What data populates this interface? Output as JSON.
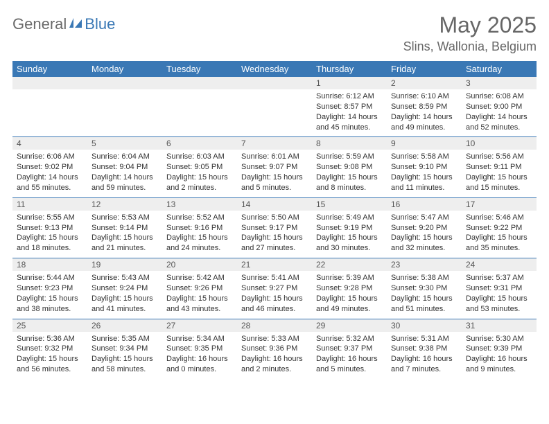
{
  "logo": {
    "text1": "General",
    "text2": "Blue"
  },
  "header": {
    "month": "May 2025",
    "location": "Slins, Wallonia, Belgium"
  },
  "dayNames": [
    "Sunday",
    "Monday",
    "Tuesday",
    "Wednesday",
    "Thursday",
    "Friday",
    "Saturday"
  ],
  "colors": {
    "header_bg": "#3a78b5",
    "header_fg": "#ffffff",
    "num_bg": "#eeeeee",
    "text": "#333333",
    "logo_gray": "#6a6a6a",
    "logo_blue": "#3a78b5"
  },
  "weeks": [
    [
      null,
      null,
      null,
      null,
      {
        "n": "1",
        "sr": "Sunrise: 6:12 AM",
        "ss": "Sunset: 8:57 PM",
        "d1": "Daylight: 14 hours",
        "d2": "and 45 minutes."
      },
      {
        "n": "2",
        "sr": "Sunrise: 6:10 AM",
        "ss": "Sunset: 8:59 PM",
        "d1": "Daylight: 14 hours",
        "d2": "and 49 minutes."
      },
      {
        "n": "3",
        "sr": "Sunrise: 6:08 AM",
        "ss": "Sunset: 9:00 PM",
        "d1": "Daylight: 14 hours",
        "d2": "and 52 minutes."
      }
    ],
    [
      {
        "n": "4",
        "sr": "Sunrise: 6:06 AM",
        "ss": "Sunset: 9:02 PM",
        "d1": "Daylight: 14 hours",
        "d2": "and 55 minutes."
      },
      {
        "n": "5",
        "sr": "Sunrise: 6:04 AM",
        "ss": "Sunset: 9:04 PM",
        "d1": "Daylight: 14 hours",
        "d2": "and 59 minutes."
      },
      {
        "n": "6",
        "sr": "Sunrise: 6:03 AM",
        "ss": "Sunset: 9:05 PM",
        "d1": "Daylight: 15 hours",
        "d2": "and 2 minutes."
      },
      {
        "n": "7",
        "sr": "Sunrise: 6:01 AM",
        "ss": "Sunset: 9:07 PM",
        "d1": "Daylight: 15 hours",
        "d2": "and 5 minutes."
      },
      {
        "n": "8",
        "sr": "Sunrise: 5:59 AM",
        "ss": "Sunset: 9:08 PM",
        "d1": "Daylight: 15 hours",
        "d2": "and 8 minutes."
      },
      {
        "n": "9",
        "sr": "Sunrise: 5:58 AM",
        "ss": "Sunset: 9:10 PM",
        "d1": "Daylight: 15 hours",
        "d2": "and 11 minutes."
      },
      {
        "n": "10",
        "sr": "Sunrise: 5:56 AM",
        "ss": "Sunset: 9:11 PM",
        "d1": "Daylight: 15 hours",
        "d2": "and 15 minutes."
      }
    ],
    [
      {
        "n": "11",
        "sr": "Sunrise: 5:55 AM",
        "ss": "Sunset: 9:13 PM",
        "d1": "Daylight: 15 hours",
        "d2": "and 18 minutes."
      },
      {
        "n": "12",
        "sr": "Sunrise: 5:53 AM",
        "ss": "Sunset: 9:14 PM",
        "d1": "Daylight: 15 hours",
        "d2": "and 21 minutes."
      },
      {
        "n": "13",
        "sr": "Sunrise: 5:52 AM",
        "ss": "Sunset: 9:16 PM",
        "d1": "Daylight: 15 hours",
        "d2": "and 24 minutes."
      },
      {
        "n": "14",
        "sr": "Sunrise: 5:50 AM",
        "ss": "Sunset: 9:17 PM",
        "d1": "Daylight: 15 hours",
        "d2": "and 27 minutes."
      },
      {
        "n": "15",
        "sr": "Sunrise: 5:49 AM",
        "ss": "Sunset: 9:19 PM",
        "d1": "Daylight: 15 hours",
        "d2": "and 30 minutes."
      },
      {
        "n": "16",
        "sr": "Sunrise: 5:47 AM",
        "ss": "Sunset: 9:20 PM",
        "d1": "Daylight: 15 hours",
        "d2": "and 32 minutes."
      },
      {
        "n": "17",
        "sr": "Sunrise: 5:46 AM",
        "ss": "Sunset: 9:22 PM",
        "d1": "Daylight: 15 hours",
        "d2": "and 35 minutes."
      }
    ],
    [
      {
        "n": "18",
        "sr": "Sunrise: 5:44 AM",
        "ss": "Sunset: 9:23 PM",
        "d1": "Daylight: 15 hours",
        "d2": "and 38 minutes."
      },
      {
        "n": "19",
        "sr": "Sunrise: 5:43 AM",
        "ss": "Sunset: 9:24 PM",
        "d1": "Daylight: 15 hours",
        "d2": "and 41 minutes."
      },
      {
        "n": "20",
        "sr": "Sunrise: 5:42 AM",
        "ss": "Sunset: 9:26 PM",
        "d1": "Daylight: 15 hours",
        "d2": "and 43 minutes."
      },
      {
        "n": "21",
        "sr": "Sunrise: 5:41 AM",
        "ss": "Sunset: 9:27 PM",
        "d1": "Daylight: 15 hours",
        "d2": "and 46 minutes."
      },
      {
        "n": "22",
        "sr": "Sunrise: 5:39 AM",
        "ss": "Sunset: 9:28 PM",
        "d1": "Daylight: 15 hours",
        "d2": "and 49 minutes."
      },
      {
        "n": "23",
        "sr": "Sunrise: 5:38 AM",
        "ss": "Sunset: 9:30 PM",
        "d1": "Daylight: 15 hours",
        "d2": "and 51 minutes."
      },
      {
        "n": "24",
        "sr": "Sunrise: 5:37 AM",
        "ss": "Sunset: 9:31 PM",
        "d1": "Daylight: 15 hours",
        "d2": "and 53 minutes."
      }
    ],
    [
      {
        "n": "25",
        "sr": "Sunrise: 5:36 AM",
        "ss": "Sunset: 9:32 PM",
        "d1": "Daylight: 15 hours",
        "d2": "and 56 minutes."
      },
      {
        "n": "26",
        "sr": "Sunrise: 5:35 AM",
        "ss": "Sunset: 9:34 PM",
        "d1": "Daylight: 15 hours",
        "d2": "and 58 minutes."
      },
      {
        "n": "27",
        "sr": "Sunrise: 5:34 AM",
        "ss": "Sunset: 9:35 PM",
        "d1": "Daylight: 16 hours",
        "d2": "and 0 minutes."
      },
      {
        "n": "28",
        "sr": "Sunrise: 5:33 AM",
        "ss": "Sunset: 9:36 PM",
        "d1": "Daylight: 16 hours",
        "d2": "and 2 minutes."
      },
      {
        "n": "29",
        "sr": "Sunrise: 5:32 AM",
        "ss": "Sunset: 9:37 PM",
        "d1": "Daylight: 16 hours",
        "d2": "and 5 minutes."
      },
      {
        "n": "30",
        "sr": "Sunrise: 5:31 AM",
        "ss": "Sunset: 9:38 PM",
        "d1": "Daylight: 16 hours",
        "d2": "and 7 minutes."
      },
      {
        "n": "31",
        "sr": "Sunrise: 5:30 AM",
        "ss": "Sunset: 9:39 PM",
        "d1": "Daylight: 16 hours",
        "d2": "and 9 minutes."
      }
    ]
  ]
}
